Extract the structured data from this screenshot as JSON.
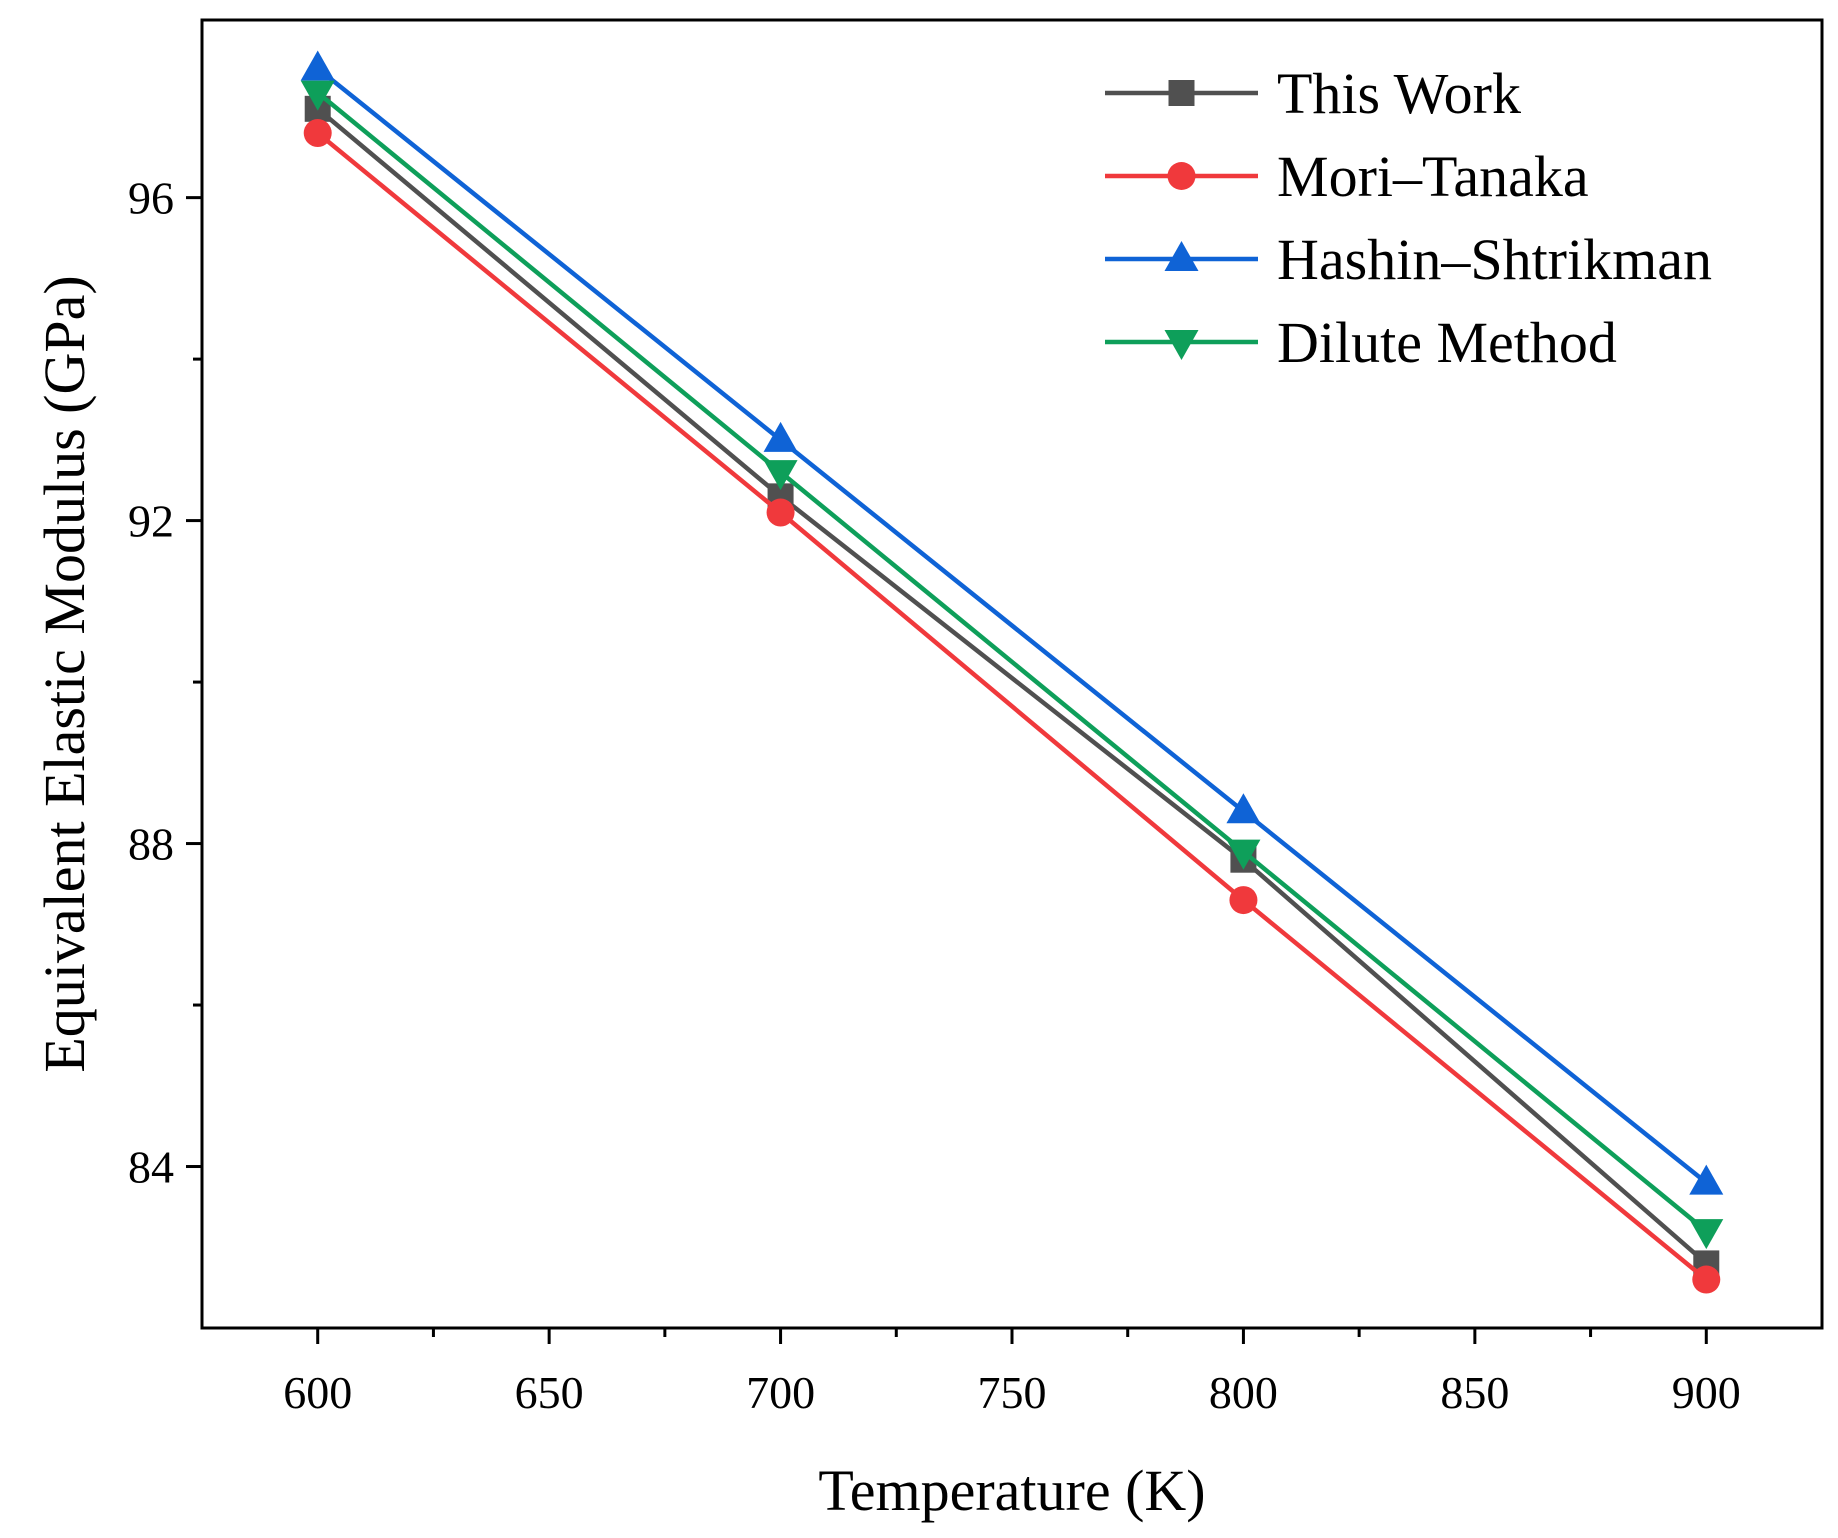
{
  "chart_data": {
    "type": "line",
    "title": "",
    "xlabel": "Temperature (K)",
    "ylabel": "Equivalent Elastic Modulus (GPa)",
    "xlim": [
      575,
      925
    ],
    "ylim": [
      82,
      98.2
    ],
    "x": [
      600,
      700,
      800,
      900
    ],
    "xticks": [
      600,
      650,
      700,
      750,
      800,
      850,
      900
    ],
    "yticks": [
      84,
      88,
      92,
      96
    ],
    "legend_position": "top-right",
    "series": [
      {
        "name": "This Work",
        "values": [
          97.1,
          92.3,
          87.8,
          82.8
        ],
        "color": "#505050",
        "marker": "square"
      },
      {
        "name": "Mori–Tanaka",
        "values": [
          96.8,
          92.1,
          87.3,
          82.6
        ],
        "color": "#f0393c",
        "marker": "circle"
      },
      {
        "name": "Hashin–Shtrikman",
        "values": [
          97.6,
          93.0,
          88.4,
          83.8
        ],
        "color": "#0f63d6",
        "marker": "triangle-up"
      },
      {
        "name": "Dilute Method",
        "values": [
          97.3,
          92.6,
          87.9,
          83.2
        ],
        "color": "#0e9f5a",
        "marker": "triangle-down"
      }
    ]
  }
}
